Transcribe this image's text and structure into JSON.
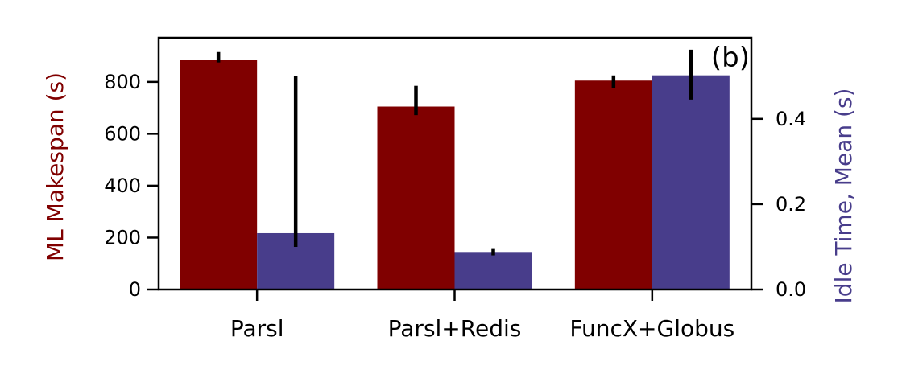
{
  "chart_data": {
    "type": "bar",
    "panel_label": "(b)",
    "categories": [
      "Parsl",
      "Parsl+Redis",
      "FuncX+Globus"
    ],
    "left_axis": {
      "label": "ML Makespan (s)",
      "color": "#800000",
      "ylim": [
        0,
        970
      ],
      "ticks": [
        0,
        200,
        400,
        600,
        800
      ],
      "tick_labels": [
        "0",
        "200",
        "400",
        "600",
        "800"
      ]
    },
    "right_axis": {
      "label": "Idle Time, Mean (s)",
      "color": "#483D8B",
      "ylim": [
        0,
        0.59
      ],
      "ticks": [
        0.0,
        0.2,
        0.4
      ],
      "tick_labels": [
        "0.0",
        "0.2",
        "0.4"
      ]
    },
    "series": [
      {
        "axis": "left",
        "color": "#800000",
        "values": [
          885,
          705,
          805
        ],
        "error_low": [
          875,
          672,
          775
        ],
        "error_high": [
          915,
          785,
          825
        ]
      },
      {
        "axis": "right",
        "color": "#483D8B",
        "values": [
          0.132,
          0.088,
          0.502
        ],
        "error_low": [
          0.1,
          0.08,
          0.445
        ],
        "error_high": [
          0.5,
          0.095,
          0.562
        ]
      }
    ],
    "grid": false,
    "legend": "none"
  }
}
